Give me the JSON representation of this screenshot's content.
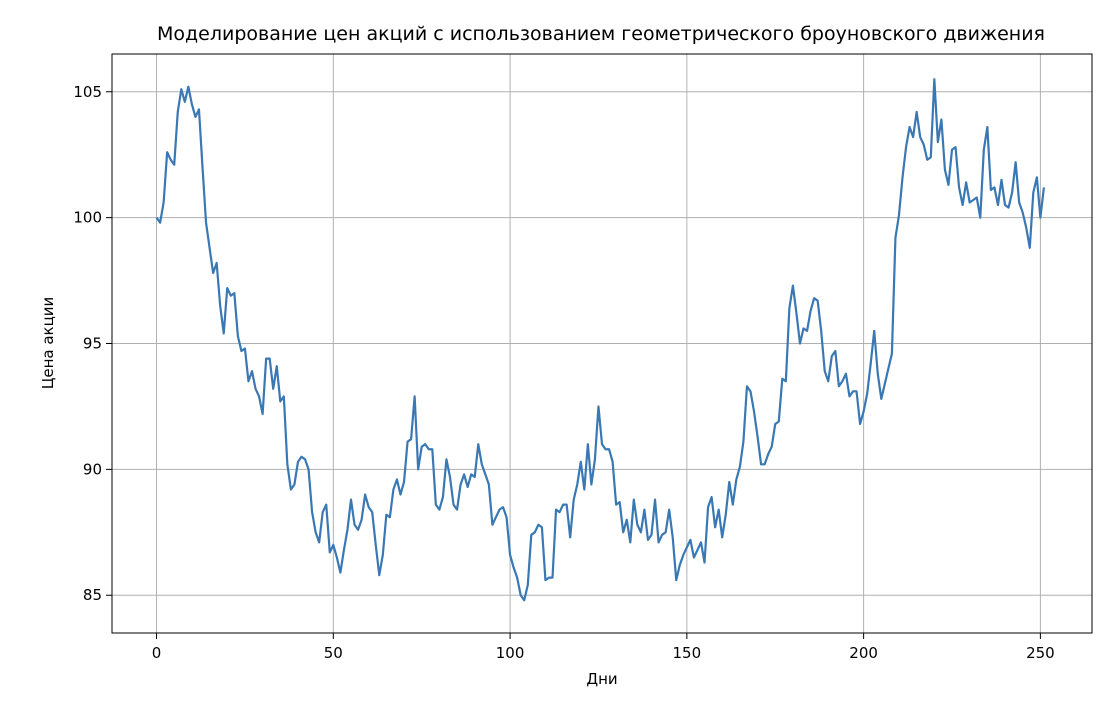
{
  "chart_data": {
    "type": "line",
    "title": "Моделирование цен акций с использованием геометрического броуновского движения",
    "xlabel": "Дни",
    "ylabel": "Цена акции",
    "xlim": [
      -12.6,
      264.6
    ],
    "ylim": [
      83.5,
      106.5
    ],
    "xticks": [
      0,
      50,
      100,
      150,
      200,
      250
    ],
    "yticks": [
      85,
      90,
      95,
      100,
      105
    ],
    "grid": true,
    "legend": "none",
    "series": [
      {
        "color": "#3a78b4",
        "x": [
          0,
          1,
          2,
          3,
          4,
          5,
          6,
          7,
          8,
          9,
          10,
          11,
          12,
          13,
          14,
          15,
          16,
          17,
          18,
          19,
          20,
          21,
          22,
          23,
          24,
          25,
          26,
          27,
          28,
          29,
          30,
          31,
          32,
          33,
          34,
          35,
          36,
          37,
          38,
          39,
          40,
          41,
          42,
          43,
          44,
          45,
          46,
          47,
          48,
          49,
          50,
          51,
          52,
          53,
          54,
          55,
          56,
          57,
          58,
          59,
          60,
          61,
          62,
          63,
          64,
          65,
          66,
          67,
          68,
          69,
          70,
          71,
          72,
          73,
          74,
          75,
          76,
          77,
          78,
          79,
          80,
          81,
          82,
          83,
          84,
          85,
          86,
          87,
          88,
          89,
          90,
          91,
          92,
          93,
          94,
          95,
          96,
          97,
          98,
          99,
          100,
          101,
          102,
          103,
          104,
          105,
          106,
          107,
          108,
          109,
          110,
          111,
          112,
          113,
          114,
          115,
          116,
          117,
          118,
          119,
          120,
          121,
          122,
          123,
          124,
          125,
          126,
          127,
          128,
          129,
          130,
          131,
          132,
          133,
          134,
          135,
          136,
          137,
          138,
          139,
          140,
          141,
          142,
          143,
          144,
          145,
          146,
          147,
          148,
          149,
          150,
          151,
          152,
          153,
          154,
          155,
          156,
          157,
          158,
          159,
          160,
          161,
          162,
          163,
          164,
          165,
          166,
          167,
          168,
          169,
          170,
          171,
          172,
          173,
          174,
          175,
          176,
          177,
          178,
          179,
          180,
          181,
          182,
          183,
          184,
          185,
          186,
          187,
          188,
          189,
          190,
          191,
          192,
          193,
          194,
          195,
          196,
          197,
          198,
          199,
          200,
          201,
          202,
          203,
          204,
          205,
          206,
          207,
          208,
          209,
          210,
          211,
          212,
          213,
          214,
          215,
          216,
          217,
          218,
          219,
          220,
          221,
          222,
          223,
          224,
          225,
          226,
          227,
          228,
          229,
          230,
          231,
          232,
          233,
          234,
          235,
          236,
          237,
          238,
          239,
          240,
          241,
          242,
          243,
          244,
          245,
          246,
          247,
          248,
          249,
          250,
          251
        ],
        "values": [
          100.0,
          99.8,
          100.6,
          102.6,
          102.3,
          102.1,
          104.2,
          105.1,
          104.6,
          105.2,
          104.5,
          104.0,
          104.3,
          102.0,
          99.8,
          98.8,
          97.8,
          98.2,
          96.5,
          95.4,
          97.2,
          96.9,
          97.0,
          95.3,
          94.7,
          94.8,
          93.5,
          93.9,
          93.2,
          92.9,
          92.2,
          94.4,
          94.4,
          93.2,
          94.1,
          92.7,
          92.9,
          90.2,
          89.2,
          89.4,
          90.3,
          90.5,
          90.4,
          90.0,
          88.3,
          87.5,
          87.1,
          88.3,
          88.6,
          86.7,
          87.0,
          86.5,
          85.9,
          86.8,
          87.6,
          88.8,
          87.8,
          87.6,
          88.0,
          89.0,
          88.5,
          88.3,
          87.0,
          85.8,
          86.6,
          88.2,
          88.1,
          89.2,
          89.6,
          89.0,
          89.5,
          91.1,
          91.2,
          92.9,
          90.0,
          90.9,
          91.0,
          90.8,
          90.8,
          88.6,
          88.4,
          88.9,
          90.4,
          89.7,
          88.6,
          88.4,
          89.4,
          89.8,
          89.3,
          89.8,
          89.7,
          91.0,
          90.2,
          89.8,
          89.4,
          87.8,
          88.1,
          88.4,
          88.5,
          88.1,
          86.6,
          86.1,
          85.7,
          85.0,
          84.8,
          85.4,
          87.4,
          87.5,
          87.8,
          87.7,
          85.6,
          85.7,
          85.7,
          88.4,
          88.3,
          88.6,
          88.6,
          87.3,
          88.8,
          89.4,
          90.3,
          89.2,
          91.0,
          89.4,
          90.4,
          92.5,
          91.0,
          90.8,
          90.8,
          90.3,
          88.6,
          88.7,
          87.5,
          88.0,
          87.1,
          88.8,
          87.8,
          87.5,
          88.4,
          87.2,
          87.4,
          88.8,
          87.1,
          87.4,
          87.5,
          88.4,
          87.3,
          85.6,
          86.2,
          86.6,
          86.9,
          87.2,
          86.5,
          86.8,
          87.1,
          86.3,
          88.5,
          88.9,
          87.7,
          88.4,
          87.3,
          88.2,
          89.5,
          88.6,
          89.6,
          90.1,
          91.1,
          93.3,
          93.1,
          92.3,
          91.3,
          90.2,
          90.2,
          90.6,
          90.9,
          91.8,
          91.9,
          93.6,
          93.5,
          96.4,
          97.3,
          96.2,
          95.0,
          95.6,
          95.5,
          96.3,
          96.8,
          96.7,
          95.5,
          93.9,
          93.5,
          94.5,
          94.7,
          93.3,
          93.5,
          93.8,
          92.9,
          93.1,
          93.1,
          91.8,
          92.3,
          93.0,
          94.2,
          95.5,
          93.8,
          92.8,
          93.4,
          94.0,
          94.6,
          99.2,
          100.1,
          101.6,
          102.8,
          103.6,
          103.2,
          104.2,
          103.2,
          102.9,
          102.3,
          102.4,
          105.5,
          103.0,
          103.9,
          101.9,
          101.3,
          102.7,
          102.8,
          101.2,
          100.5,
          101.4,
          100.6,
          100.7,
          100.8,
          100.0,
          102.7,
          103.6,
          101.1,
          101.2,
          100.5,
          101.5,
          100.5,
          100.4,
          101.0,
          102.2,
          100.6,
          100.2,
          99.6,
          98.8,
          101.0,
          101.6,
          100.0,
          101.2
        ]
      }
    ]
  }
}
